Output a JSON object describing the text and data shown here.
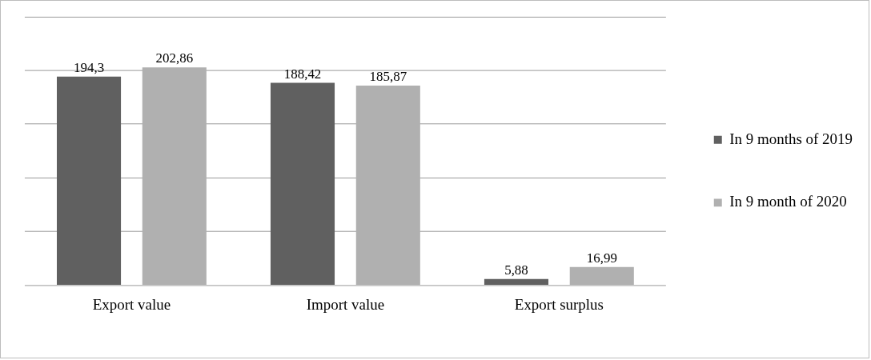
{
  "chart_data": {
    "type": "bar",
    "categories": [
      "Export value",
      "Import value",
      "Export surplus"
    ],
    "series": [
      {
        "name": "In 9 months of 2019",
        "color": "#606060",
        "values": [
          194.3,
          188.42,
          5.88
        ],
        "value_labels": [
          "194,3",
          "188,42",
          "5,88"
        ]
      },
      {
        "name": "In 9 month of 2020",
        "color": "#b0b0b0",
        "values": [
          202.86,
          185.87,
          16.99
        ],
        "value_labels": [
          "202,86",
          "185,87",
          "16,99"
        ]
      }
    ],
    "ylim": [
      0,
      250
    ],
    "yticks": [
      {
        "value": 0,
        "label": null
      },
      {
        "value": 50,
        "label": null
      },
      {
        "value": 100,
        "label": null
      },
      {
        "value": 150,
        "label": null
      },
      {
        "value": 200,
        "label": null
      },
      {
        "value": 250,
        "label": null
      }
    ],
    "grid": "y",
    "legend": "right",
    "tick_labels": "x"
  }
}
